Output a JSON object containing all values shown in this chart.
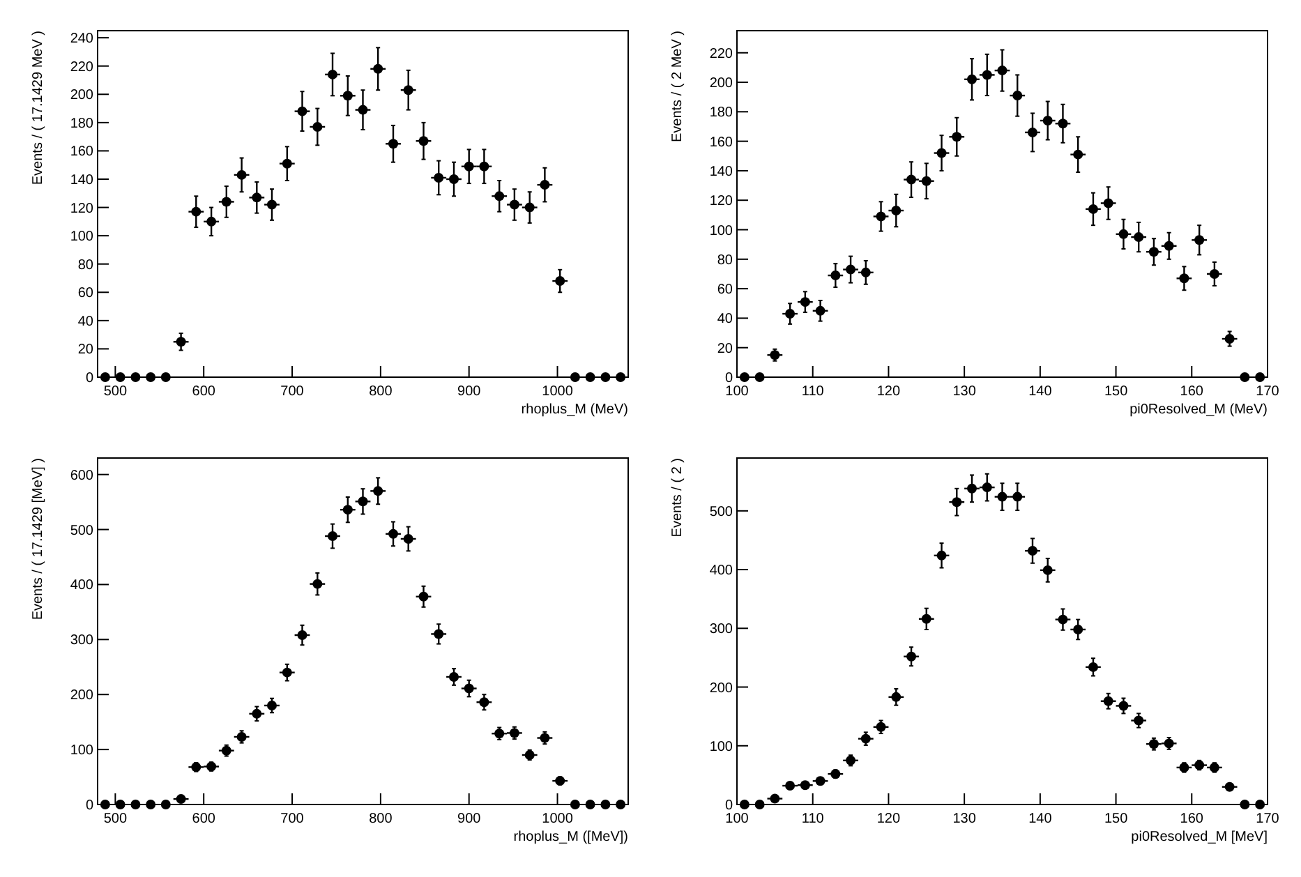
{
  "chart_data": [
    {
      "type": "scatter",
      "ylabel": "Events / ( 17.1429 MeV )",
      "xlabel": "rhoplus_M  (MeV)",
      "color": "#000000",
      "marker": "circle",
      "grid": false,
      "x": [
        488.6,
        505.7,
        522.9,
        540.0,
        557.1,
        574.3,
        591.4,
        608.6,
        625.7,
        642.9,
        660.0,
        677.1,
        694.3,
        711.4,
        728.6,
        745.7,
        762.9,
        780.0,
        797.1,
        814.3,
        831.4,
        848.6,
        865.7,
        882.9,
        900.0,
        917.1,
        934.3,
        951.4,
        968.6,
        985.7,
        1002.9,
        1020.0,
        1037.1,
        1054.3,
        1071.4
      ],
      "values": [
        0,
        0,
        0,
        0,
        0,
        25,
        117,
        110,
        124,
        143,
        127,
        122,
        151,
        188,
        177,
        214,
        199,
        189,
        218,
        165,
        203,
        167,
        141,
        140,
        149,
        149,
        128,
        122,
        120,
        136,
        68,
        0,
        0,
        0,
        0
      ],
      "errors": [
        null,
        null,
        null,
        null,
        null,
        6,
        11,
        10,
        11,
        12,
        11,
        11,
        12,
        14,
        13,
        15,
        14,
        14,
        15,
        13,
        14,
        13,
        12,
        12,
        12,
        12,
        11,
        11,
        11,
        12,
        8,
        null,
        null,
        null,
        null
      ],
      "xerrors": [
        null,
        null,
        null,
        null,
        null,
        8.6,
        8.6,
        8.6,
        8.6,
        8.6,
        8.6,
        8.6,
        8.6,
        8.6,
        8.6,
        8.6,
        8.6,
        8.6,
        8.6,
        8.6,
        8.6,
        8.6,
        8.6,
        8.6,
        8.6,
        8.6,
        8.6,
        8.6,
        8.6,
        8.6,
        8.6,
        null,
        null,
        null,
        null
      ],
      "xlim": [
        480,
        1080
      ],
      "xticks": [
        500,
        600,
        700,
        800,
        900,
        1000
      ],
      "ylim": [
        0,
        245
      ],
      "yticks": [
        0,
        20,
        40,
        60,
        80,
        100,
        120,
        140,
        160,
        180,
        200,
        220,
        240
      ]
    },
    {
      "type": "scatter",
      "ylabel": "Events / ( 2 MeV )",
      "xlabel": "pi0Resolved_M (MeV)",
      "color": "#000000",
      "marker": "circle",
      "grid": false,
      "x": [
        101,
        103,
        105,
        107,
        109,
        111,
        113,
        115,
        117,
        119,
        121,
        123,
        125,
        127,
        129,
        131,
        133,
        135,
        137,
        139,
        141,
        143,
        145,
        147,
        149,
        151,
        153,
        155,
        157,
        159,
        161,
        163,
        165,
        167,
        169
      ],
      "values": [
        0,
        0,
        15,
        43,
        51,
        45,
        69,
        73,
        71,
        109,
        113,
        134,
        133,
        152,
        163,
        202,
        205,
        208,
        191,
        166,
        174,
        172,
        151,
        114,
        118,
        97,
        95,
        85,
        89,
        67,
        93,
        70,
        26,
        0,
        0
      ],
      "errors": [
        null,
        null,
        4,
        7,
        7,
        7,
        8,
        9,
        8,
        10,
        11,
        12,
        12,
        12,
        13,
        14,
        14,
        14,
        14,
        13,
        13,
        13,
        12,
        11,
        11,
        10,
        10,
        9,
        9,
        8,
        10,
        8,
        5,
        null,
        null
      ],
      "xerrors": [
        null,
        null,
        1,
        1,
        1,
        1,
        1,
        1,
        1,
        1,
        1,
        1,
        1,
        1,
        1,
        1,
        1,
        1,
        1,
        1,
        1,
        1,
        1,
        1,
        1,
        1,
        1,
        1,
        1,
        1,
        1,
        1,
        1,
        null,
        null
      ],
      "xlim": [
        100,
        170
      ],
      "xticks": [
        100,
        110,
        120,
        130,
        140,
        150,
        160,
        170
      ],
      "ylim": [
        0,
        235
      ],
      "yticks": [
        0,
        20,
        40,
        60,
        80,
        100,
        120,
        140,
        160,
        180,
        200,
        220
      ]
    },
    {
      "type": "scatter",
      "ylabel": "Events / ( 17.1429 [MeV] )",
      "xlabel": "rhoplus_M ([MeV])",
      "color": "#000000",
      "marker": "circle",
      "grid": false,
      "x": [
        488.6,
        505.7,
        522.9,
        540.0,
        557.1,
        574.3,
        591.4,
        608.6,
        625.7,
        642.9,
        660.0,
        677.1,
        694.3,
        711.4,
        728.6,
        745.7,
        762.9,
        780.0,
        797.1,
        814.3,
        831.4,
        848.6,
        865.7,
        882.9,
        900.0,
        917.1,
        934.3,
        951.4,
        968.6,
        985.7,
        1002.9,
        1020.0,
        1037.1,
        1054.3,
        1071.4
      ],
      "values": [
        0,
        0,
        0,
        0,
        0,
        10,
        68,
        69,
        98,
        123,
        165,
        180,
        240,
        308,
        401,
        488,
        536,
        551,
        570,
        492,
        483,
        378,
        310,
        232,
        211,
        186,
        129,
        130,
        90,
        121,
        43,
        0,
        0,
        0,
        0
      ],
      "errors": [
        null,
        null,
        null,
        null,
        null,
        3,
        8,
        8,
        10,
        11,
        13,
        13,
        15,
        18,
        20,
        22,
        23,
        23,
        24,
        22,
        22,
        19,
        18,
        15,
        15,
        14,
        11,
        11,
        9,
        11,
        7,
        null,
        null,
        null,
        null
      ],
      "xerrors": [
        null,
        null,
        null,
        null,
        null,
        8.6,
        8.6,
        8.6,
        8.6,
        8.6,
        8.6,
        8.6,
        8.6,
        8.6,
        8.6,
        8.6,
        8.6,
        8.6,
        8.6,
        8.6,
        8.6,
        8.6,
        8.6,
        8.6,
        8.6,
        8.6,
        8.6,
        8.6,
        8.6,
        8.6,
        8.6,
        null,
        null,
        null,
        null
      ],
      "xlim": [
        480,
        1080
      ],
      "xticks": [
        500,
        600,
        700,
        800,
        900,
        1000
      ],
      "ylim": [
        0,
        630
      ],
      "yticks": [
        0,
        100,
        200,
        300,
        400,
        500,
        600
      ]
    },
    {
      "type": "scatter",
      "ylabel": "Events / ( 2 )",
      "xlabel": "pi0Resolved_M [MeV]",
      "color": "#000000",
      "marker": "circle",
      "grid": false,
      "x": [
        101,
        103,
        105,
        107,
        109,
        111,
        113,
        115,
        117,
        119,
        121,
        123,
        125,
        127,
        129,
        131,
        133,
        135,
        137,
        139,
        141,
        143,
        145,
        147,
        149,
        151,
        153,
        155,
        157,
        159,
        161,
        163,
        165,
        167,
        169
      ],
      "values": [
        0,
        0,
        10,
        32,
        33,
        40,
        52,
        75,
        112,
        132,
        183,
        252,
        316,
        424,
        515,
        538,
        540,
        524,
        524,
        432,
        399,
        315,
        298,
        234,
        176,
        168,
        143,
        103,
        104,
        63,
        67,
        63,
        30,
        0,
        0
      ],
      "errors": [
        null,
        null,
        3,
        6,
        6,
        6,
        7,
        9,
        11,
        11,
        14,
        16,
        18,
        21,
        23,
        23,
        23,
        23,
        23,
        21,
        20,
        18,
        17,
        15,
        13,
        13,
        12,
        10,
        10,
        8,
        8,
        8,
        5,
        null,
        null
      ],
      "xerrors": [
        null,
        null,
        1,
        1,
        1,
        1,
        1,
        1,
        1,
        1,
        1,
        1,
        1,
        1,
        1,
        1,
        1,
        1,
        1,
        1,
        1,
        1,
        1,
        1,
        1,
        1,
        1,
        1,
        1,
        1,
        1,
        1,
        1,
        null,
        null
      ],
      "xlim": [
        100,
        170
      ],
      "xticks": [
        100,
        110,
        120,
        130,
        140,
        150,
        160,
        170
      ],
      "ylim": [
        0,
        590
      ],
      "yticks": [
        0,
        100,
        200,
        300,
        400,
        500
      ]
    }
  ]
}
